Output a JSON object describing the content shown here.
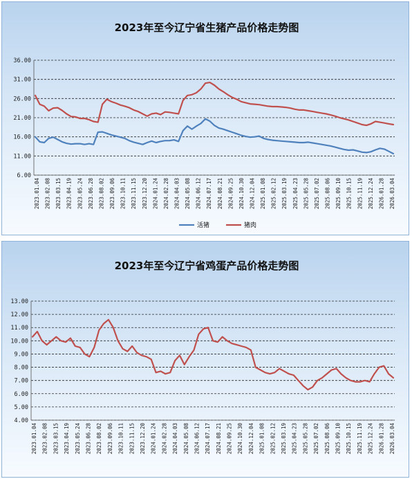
{
  "chart_data": [
    {
      "type": "line",
      "title": "2023年至今辽宁省生猪产品价格走势图",
      "ylim": [
        6,
        36
      ],
      "yticks": [
        "36.00",
        "31.00",
        "26.00",
        "21.00",
        "16.00",
        "11.00",
        "6.00"
      ],
      "x_labels": [
        "2023.01.04",
        "2023.02.08",
        "2023.03.15",
        "2023.04.19",
        "2023.05.24",
        "2023.06.28",
        "2023.08.02",
        "2023.09.06",
        "2023.10.11",
        "2023.11.15",
        "2023.12.20",
        "2024.01.24",
        "2024.02.28",
        "2024.04.03",
        "2024.05.08",
        "2024.06.12",
        "2024.07.17",
        "2024.08.21",
        "2024.09.25",
        "2024.10.30",
        "2024.12.04",
        "2025.01.08",
        "2025.02.12",
        "2025.03.19",
        "2025.04.23",
        "2025.05.28",
        "2025.07.02",
        "2025.08.06",
        "2025.09.10",
        "2025.10.15",
        "2025.11.19",
        "2025.12.24",
        "2026.01.28",
        "2026.03.04"
      ],
      "grid": true,
      "legend": "bottom",
      "series": [
        {
          "name": "活猪",
          "color": "#4f81bd",
          "values": [
            16.0,
            14.7,
            14.5,
            15.6,
            15.9,
            15.3,
            14.7,
            14.3,
            14.1,
            14.2,
            14.2,
            14.0,
            14.2,
            14.0,
            17.2,
            17.3,
            16.9,
            16.5,
            16.2,
            15.9,
            15.6,
            15.0,
            14.6,
            14.3,
            14.0,
            14.5,
            14.9,
            14.5,
            14.8,
            15.0,
            15.0,
            15.2,
            14.8,
            17.6,
            18.8,
            18.0,
            18.8,
            19.5,
            20.7,
            20.1,
            19.0,
            18.3,
            18.0,
            17.6,
            17.2,
            16.8,
            16.4,
            16.1,
            15.9,
            16.0,
            16.2,
            15.6,
            15.3,
            15.1,
            15.0,
            14.9,
            14.8,
            14.7,
            14.6,
            14.5,
            14.5,
            14.6,
            14.4,
            14.2,
            14.0,
            13.8,
            13.6,
            13.3,
            13.0,
            12.7,
            12.5,
            12.6,
            12.3,
            12.0,
            11.9,
            12.1,
            12.6,
            13.0,
            12.8,
            12.2,
            11.6
          ]
        },
        {
          "name": "猪肉",
          "color": "#c0504d",
          "values": [
            26.8,
            24.5,
            24.0,
            22.8,
            23.5,
            23.6,
            22.9,
            22.0,
            21.3,
            21.2,
            20.8,
            20.8,
            20.5,
            20.0,
            19.8,
            24.5,
            25.8,
            25.2,
            24.8,
            24.3,
            24.0,
            23.6,
            23.0,
            22.6,
            22.0,
            21.4,
            22.0,
            22.2,
            21.8,
            22.5,
            22.4,
            22.2,
            22.0,
            25.5,
            26.8,
            27.0,
            27.5,
            28.5,
            30.0,
            30.2,
            29.5,
            28.5,
            27.8,
            27.0,
            26.3,
            25.8,
            25.2,
            24.9,
            24.6,
            24.5,
            24.4,
            24.2,
            24.0,
            23.9,
            23.9,
            23.8,
            23.7,
            23.5,
            23.2,
            23.0,
            23.0,
            22.8,
            22.6,
            22.4,
            22.2,
            22.0,
            21.7,
            21.4,
            21.0,
            20.7,
            20.4,
            20.0,
            19.6,
            19.2,
            19.0,
            19.4,
            20.0,
            19.8,
            19.6,
            19.4,
            19.2
          ]
        }
      ]
    },
    {
      "type": "line",
      "title": "2023年至今辽宁省鸡蛋产品价格走势图",
      "ylim": [
        4,
        13
      ],
      "yticks": [
        "13.00",
        "12.00",
        "11.00",
        "10.00",
        "9.00",
        "8.00",
        "7.00",
        "6.00",
        "5.00",
        "4.00"
      ],
      "x_labels": [
        "2023.01.04",
        "2023.02.08",
        "2023.03.15",
        "2023.04.19",
        "2023.05.24",
        "2023.06.28",
        "2023.08.02",
        "2023.09.06",
        "2023.10.11",
        "2023.11.15",
        "2023.12.20",
        "2024.01.24",
        "2024.02.28",
        "2024.04.03",
        "2024.05.08",
        "2024.06.12",
        "2024.07.17",
        "2024.08.21",
        "2024.09.25",
        "2024.10.30",
        "2024.12.04",
        "2025.01.08",
        "2025.02.12",
        "2025.03.19",
        "2025.04.23",
        "2025.05.28",
        "2025.07.02",
        "2025.08.06",
        "2025.09.10",
        "2025.10.15",
        "2025.11.19",
        "2025.12.24",
        "2026.01.28",
        "2026.03.04"
      ],
      "grid": true,
      "series": [
        {
          "name": "",
          "color": "#c0504d",
          "values": [
            10.3,
            10.7,
            10.0,
            9.7,
            10.0,
            10.3,
            10.0,
            9.9,
            10.2,
            9.6,
            9.5,
            9.0,
            8.8,
            9.5,
            10.8,
            11.3,
            11.6,
            11.0,
            10.0,
            9.4,
            9.2,
            9.6,
            9.1,
            8.9,
            8.8,
            8.6,
            7.6,
            7.7,
            7.5,
            7.6,
            8.5,
            8.9,
            8.2,
            8.8,
            9.3,
            10.5,
            10.9,
            11.0,
            10.0,
            9.9,
            10.3,
            10.0,
            9.8,
            9.7,
            9.6,
            9.5,
            9.3,
            8.0,
            7.8,
            7.6,
            7.5,
            7.6,
            7.9,
            7.7,
            7.5,
            7.4,
            7.0,
            6.6,
            6.3,
            6.5,
            7.0,
            7.2,
            7.5,
            7.8,
            7.9,
            7.5,
            7.2,
            7.0,
            6.9,
            6.9,
            7.0,
            6.9,
            7.5,
            8.0,
            8.1,
            7.5,
            7.2
          ]
        }
      ]
    }
  ]
}
